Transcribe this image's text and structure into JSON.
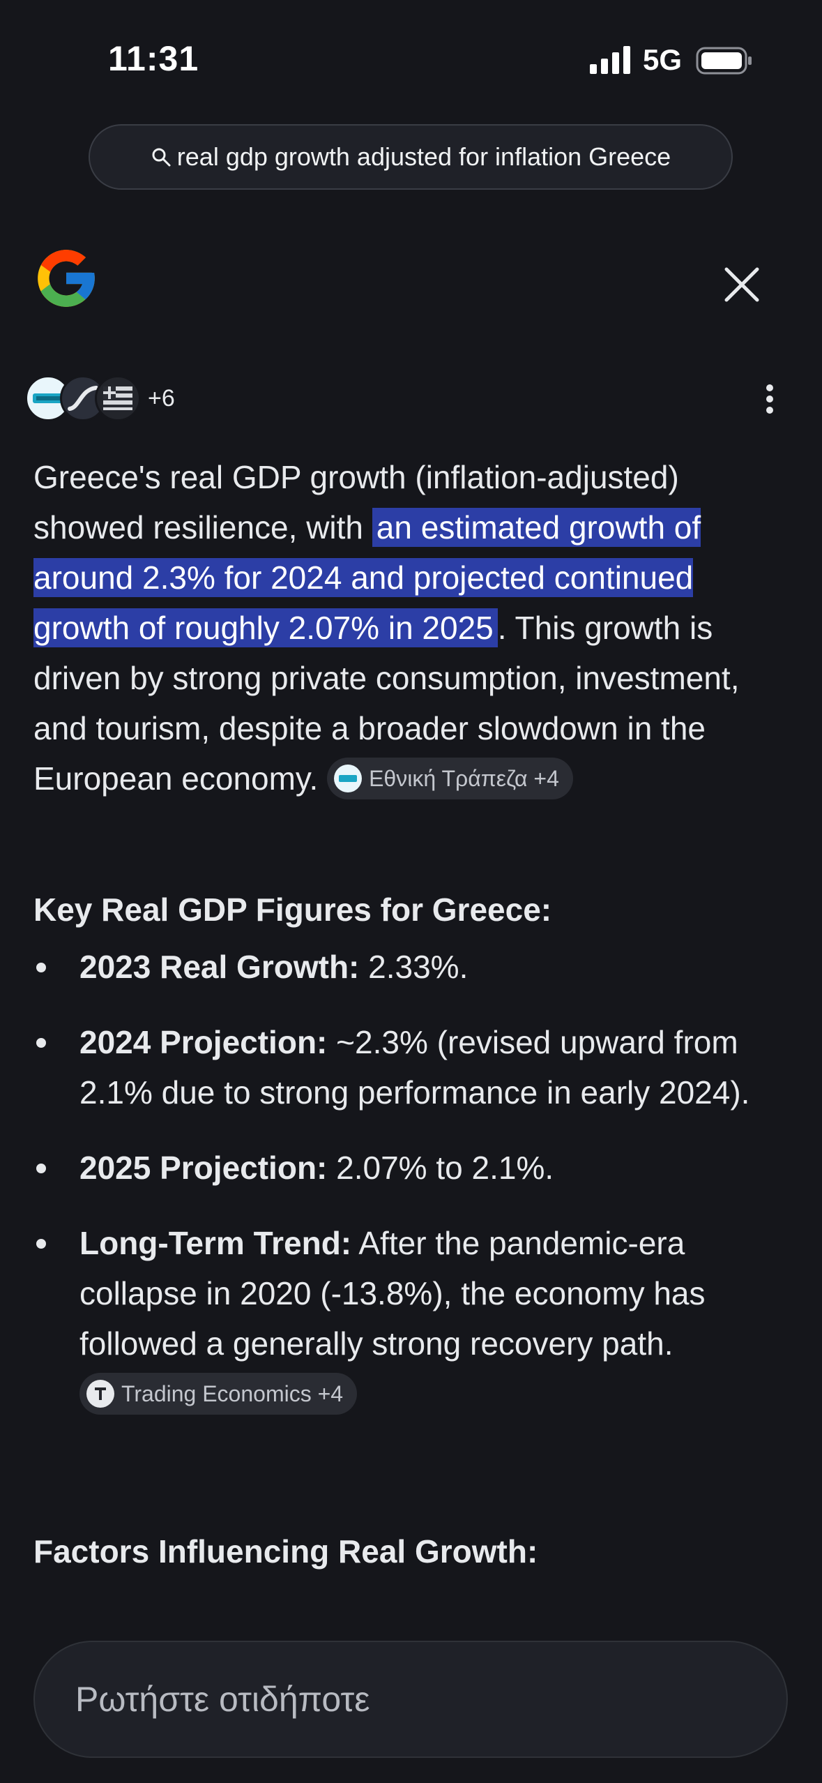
{
  "status_bar": {
    "time": "11:31",
    "network": "5G"
  },
  "search": {
    "query": "real gdp growth adjusted for inflation Greece"
  },
  "sources": {
    "more_count": "+6"
  },
  "answer": {
    "intro_start": "Greece's real GDP growth (inflation-adjusted) showed resilience, with ",
    "highlight": "an estimated growth of around 2.3% for 2024 and projected continued growth of roughly 2.07% in 2025",
    "intro_end": ". This growth is driven by strong private consumption, investment, and tourism, despite a broader slowdown in the European economy.",
    "source_chip": "Εθνική Τράπεζα +4"
  },
  "key_figures": {
    "heading": "Key Real GDP Figures for Greece:",
    "items": [
      {
        "label": "2023 Real Growth:",
        "text": " 2.33%."
      },
      {
        "label": "2024 Projection:",
        "text": " ~2.3% (revised upward from 2.1% due to strong performance in early 2024)."
      },
      {
        "label": "2025 Projection:",
        "text": " 2.07% to 2.1%."
      },
      {
        "label": "Long-Term Trend:",
        "text": "  After the pandemic-era collapse in 2020 (-13.8%), the economy has followed a generally strong recovery path.",
        "source_chip": "Trading Economics +4"
      }
    ]
  },
  "factors": {
    "heading": "Factors Influencing Real Growth:"
  },
  "ask": {
    "placeholder": "Ρωτήστε οτιδήποτε"
  },
  "colors": {
    "background": "#15161b",
    "highlight": "#2c3ea6",
    "chip": "#2a2c33"
  }
}
